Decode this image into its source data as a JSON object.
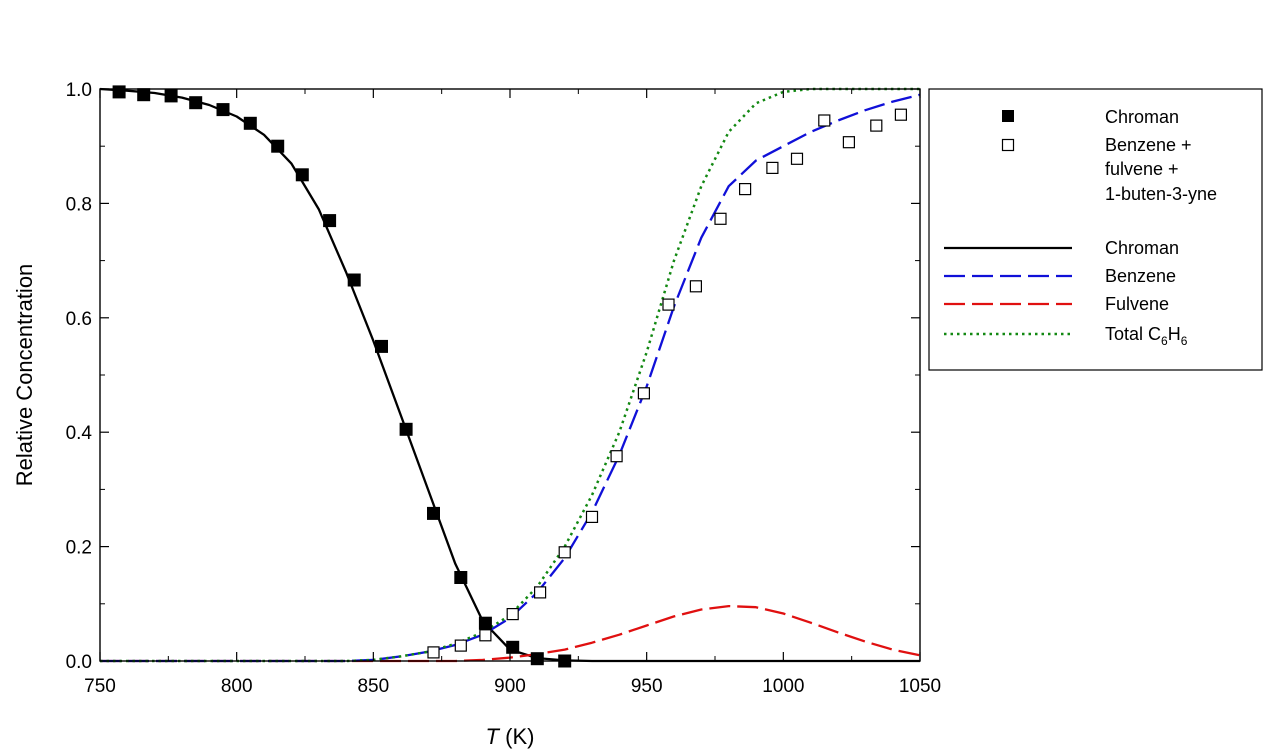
{
  "chart_data": {
    "type": "line",
    "title": "",
    "xlabel_italic": "T",
    "xlabel_rest": " (K)",
    "ylabel": "Relative Concentration",
    "xlim": [
      750,
      1050
    ],
    "ylim": [
      0,
      1
    ],
    "xticks": [
      "750",
      "800",
      "850",
      "900",
      "950",
      "1000",
      "1050"
    ],
    "yticks": [
      "0.0",
      "0.2",
      "0.4",
      "0.6",
      "0.8",
      "1.0"
    ],
    "xtick_values": [
      750,
      800,
      850,
      900,
      950,
      1000,
      1050
    ],
    "ytick_values": [
      0,
      0.2,
      0.4,
      0.6,
      0.8,
      1.0
    ],
    "grid": false,
    "legend_position": "outside-right",
    "scatter_series": [
      {
        "name": "Chroman",
        "marker": "filled-square",
        "color": "#000000",
        "points": [
          [
            757,
            0.995
          ],
          [
            766,
            0.99
          ],
          [
            776,
            0.988
          ],
          [
            785,
            0.976
          ],
          [
            795,
            0.964
          ],
          [
            805,
            0.94
          ],
          [
            815,
            0.9
          ],
          [
            824,
            0.85
          ],
          [
            834,
            0.77
          ],
          [
            843,
            0.666
          ],
          [
            853,
            0.55
          ],
          [
            862,
            0.405
          ],
          [
            872,
            0.258
          ],
          [
            882,
            0.146
          ],
          [
            891,
            0.066
          ],
          [
            901,
            0.024
          ],
          [
            910,
            0.004
          ],
          [
            920,
            0.0
          ]
        ]
      },
      {
        "name_lines": [
          "Benzene +",
          "fulvene +",
          "1-buten-3-yne"
        ],
        "marker": "open-square",
        "color": "#000000",
        "points": [
          [
            872,
            0.015
          ],
          [
            882,
            0.027
          ],
          [
            891,
            0.045
          ],
          [
            901,
            0.082
          ],
          [
            911,
            0.12
          ],
          [
            920,
            0.19
          ],
          [
            930,
            0.252
          ],
          [
            939,
            0.358
          ],
          [
            949,
            0.468
          ],
          [
            958,
            0.623
          ],
          [
            968,
            0.655
          ],
          [
            977,
            0.773
          ],
          [
            986,
            0.825
          ],
          [
            996,
            0.862
          ],
          [
            1005,
            0.878
          ],
          [
            1015,
            0.945
          ],
          [
            1024,
            0.907
          ],
          [
            1034,
            0.936
          ],
          [
            1043,
            0.955
          ]
        ]
      }
    ],
    "line_series": [
      {
        "name": "Chroman",
        "style": "solid",
        "color": "#000000",
        "points": [
          [
            750,
            1.0
          ],
          [
            760,
            0.997
          ],
          [
            770,
            0.993
          ],
          [
            780,
            0.985
          ],
          [
            790,
            0.972
          ],
          [
            800,
            0.952
          ],
          [
            810,
            0.92
          ],
          [
            820,
            0.87
          ],
          [
            830,
            0.79
          ],
          [
            840,
            0.68
          ],
          [
            850,
            0.56
          ],
          [
            860,
            0.43
          ],
          [
            870,
            0.3
          ],
          [
            880,
            0.17
          ],
          [
            890,
            0.07
          ],
          [
            900,
            0.02
          ],
          [
            910,
            0.005
          ],
          [
            920,
            0.001
          ],
          [
            930,
            0.0
          ],
          [
            1050,
            0.0
          ]
        ]
      },
      {
        "name": "Benzene",
        "style": "dash",
        "color": "#1010d8",
        "points": [
          [
            750,
            0.0
          ],
          [
            840,
            0.0
          ],
          [
            850,
            0.002
          ],
          [
            860,
            0.008
          ],
          [
            870,
            0.016
          ],
          [
            880,
            0.028
          ],
          [
            890,
            0.046
          ],
          [
            900,
            0.075
          ],
          [
            910,
            0.12
          ],
          [
            920,
            0.18
          ],
          [
            930,
            0.26
          ],
          [
            940,
            0.36
          ],
          [
            950,
            0.48
          ],
          [
            960,
            0.62
          ],
          [
            970,
            0.74
          ],
          [
            980,
            0.83
          ],
          [
            990,
            0.875
          ],
          [
            1000,
            0.9
          ],
          [
            1010,
            0.925
          ],
          [
            1020,
            0.945
          ],
          [
            1030,
            0.963
          ],
          [
            1040,
            0.978
          ],
          [
            1050,
            0.99
          ]
        ]
      },
      {
        "name": "Fulvene",
        "style": "dash",
        "color": "#e01010",
        "points": [
          [
            750,
            0.0
          ],
          [
            880,
            0.0
          ],
          [
            890,
            0.002
          ],
          [
            900,
            0.006
          ],
          [
            910,
            0.012
          ],
          [
            920,
            0.02
          ],
          [
            930,
            0.032
          ],
          [
            940,
            0.046
          ],
          [
            950,
            0.062
          ],
          [
            960,
            0.078
          ],
          [
            970,
            0.09
          ],
          [
            980,
            0.096
          ],
          [
            990,
            0.094
          ],
          [
            1000,
            0.083
          ],
          [
            1010,
            0.067
          ],
          [
            1020,
            0.05
          ],
          [
            1030,
            0.034
          ],
          [
            1040,
            0.02
          ],
          [
            1050,
            0.01
          ]
        ]
      },
      {
        "name_prefix": "Total C",
        "name_sub1": "6",
        "name_mid": "H",
        "name_sub2": "6",
        "style": "dot",
        "color": "#128812",
        "points": [
          [
            750,
            0.0
          ],
          [
            840,
            0.0
          ],
          [
            850,
            0.002
          ],
          [
            860,
            0.008
          ],
          [
            870,
            0.016
          ],
          [
            880,
            0.03
          ],
          [
            890,
            0.05
          ],
          [
            900,
            0.08
          ],
          [
            910,
            0.13
          ],
          [
            920,
            0.2
          ],
          [
            930,
            0.29
          ],
          [
            940,
            0.4
          ],
          [
            950,
            0.54
          ],
          [
            960,
            0.7
          ],
          [
            970,
            0.83
          ],
          [
            980,
            0.925
          ],
          [
            990,
            0.975
          ],
          [
            1000,
            0.995
          ],
          [
            1010,
            1.0
          ],
          [
            1050,
            1.0
          ]
        ]
      }
    ]
  }
}
